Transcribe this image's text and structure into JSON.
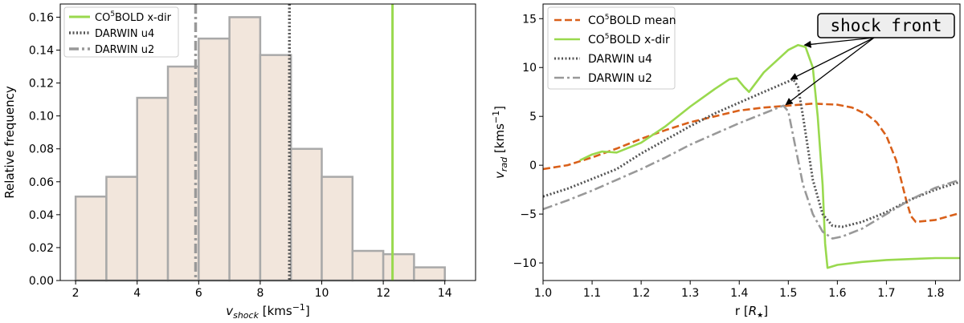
{
  "chart_data": [
    {
      "type": "bar",
      "title": "",
      "xlabel_main": "v",
      "xlabel_sub": "shock",
      "xlabel_unit": " [kms",
      "xlabel_exp": "−1",
      "xlabel_close": "]",
      "ylabel": "Relative frequency",
      "xlim": [
        1.5,
        15.0
      ],
      "ylim": [
        0,
        0.168
      ],
      "xticks": [
        2,
        4,
        6,
        8,
        10,
        12,
        14
      ],
      "yticks": [
        0.0,
        0.02,
        0.04,
        0.06,
        0.08,
        0.1,
        0.12,
        0.14,
        0.16
      ],
      "bin_edges": [
        2,
        3,
        4,
        5,
        6,
        7,
        8,
        9,
        10,
        11,
        12,
        13,
        14
      ],
      "values": [
        0.051,
        0.063,
        0.111,
        0.13,
        0.147,
        0.16,
        0.137,
        0.08,
        0.063,
        0.018,
        0.016,
        0.008
      ],
      "bar_color": "#f2e6dc",
      "edge_color": "#a9a9a9",
      "vlines": [
        {
          "name": "CO5BOLD x-dir",
          "x": 12.3,
          "color": "#99d94e",
          "style": "solid"
        },
        {
          "name": "DARWIN u4",
          "x": 8.95,
          "color": "#555555",
          "style": "dotted"
        },
        {
          "name": "DARWIN u2",
          "x": 5.9,
          "color": "#999999",
          "style": "dashdot"
        }
      ],
      "legend": {
        "placement": "top-left",
        "entries": [
          {
            "base": "CO",
            "sup": "5",
            "rest": "BOLD x-dir",
            "color": "#99d94e",
            "style": "solid"
          },
          {
            "base": "DARWIN u4",
            "sup": "",
            "rest": "",
            "color": "#555555",
            "style": "dotted"
          },
          {
            "base": "DARWIN u2",
            "sup": "",
            "rest": "",
            "color": "#999999",
            "style": "dashdot"
          }
        ]
      }
    },
    {
      "type": "line",
      "title": "",
      "xlabel_main": "r [",
      "xlabel_sym": "R",
      "xlabel_sub": "★",
      "xlabel_close": "]",
      "ylabel_main": "v",
      "ylabel_sub": "rad",
      "ylabel_unit": " [kms",
      "ylabel_exp": "−1",
      "ylabel_close": "]",
      "xlim": [
        1.0,
        1.85
      ],
      "ylim": [
        -11.8,
        16.5
      ],
      "xticks": [
        1.0,
        1.1,
        1.2,
        1.3,
        1.4,
        1.5,
        1.6,
        1.7,
        1.8
      ],
      "xtick_labels": [
        "1.0",
        "1.1",
        "1.2",
        "1.3",
        "1.4",
        "1.5",
        "1.6",
        "1.7",
        "1.8"
      ],
      "yticks": [
        -10,
        -5,
        0,
        5,
        10,
        15
      ],
      "ytick_labels": [
        "−10",
        "−5",
        "0",
        "5",
        "10",
        "15"
      ],
      "series": [
        {
          "name": "CO5BOLD mean",
          "color": "#d9601a",
          "style": "dashed",
          "x": [
            1.0,
            1.05,
            1.1,
            1.15,
            1.2,
            1.25,
            1.3,
            1.35,
            1.4,
            1.45,
            1.5,
            1.55,
            1.6,
            1.63,
            1.66,
            1.68,
            1.7,
            1.72,
            1.73,
            1.74,
            1.75,
            1.76,
            1.8,
            1.85
          ],
          "y": [
            -0.4,
            0.0,
            0.8,
            1.7,
            2.7,
            3.6,
            4.4,
            5.0,
            5.6,
            5.9,
            6.1,
            6.3,
            6.2,
            5.9,
            5.2,
            4.4,
            3.0,
            0.5,
            -1.5,
            -3.5,
            -5.2,
            -5.8,
            -5.6,
            -4.9
          ]
        },
        {
          "name": "CO5BOLD x-dir",
          "color": "#99d94e",
          "style": "solid",
          "x": [
            1.075,
            1.1,
            1.12,
            1.15,
            1.2,
            1.25,
            1.3,
            1.35,
            1.38,
            1.395,
            1.41,
            1.42,
            1.45,
            1.5,
            1.52,
            1.535,
            1.55,
            1.56,
            1.57,
            1.575,
            1.58,
            1.6,
            1.65,
            1.7,
            1.75,
            1.8,
            1.85
          ],
          "y": [
            0.5,
            1.1,
            1.4,
            1.3,
            2.3,
            4.0,
            6.0,
            7.8,
            8.8,
            8.9,
            8.0,
            7.5,
            9.5,
            11.8,
            12.3,
            12.1,
            10.0,
            5.0,
            -2.0,
            -8.0,
            -10.5,
            -10.2,
            -9.9,
            -9.7,
            -9.6,
            -9.5,
            -9.5
          ]
        },
        {
          "name": "DARWIN u4",
          "color": "#555555",
          "style": "dotted",
          "x": [
            1.0,
            1.05,
            1.1,
            1.15,
            1.2,
            1.25,
            1.3,
            1.35,
            1.4,
            1.45,
            1.51,
            1.52,
            1.53,
            1.55,
            1.57,
            1.59,
            1.61,
            1.65,
            1.7,
            1.75,
            1.8,
            1.85
          ],
          "y": [
            -3.2,
            -2.4,
            -1.4,
            -0.4,
            1.2,
            2.6,
            4.0,
            5.3,
            6.4,
            7.5,
            8.8,
            8.0,
            5.0,
            -1.5,
            -5.0,
            -6.2,
            -6.3,
            -5.8,
            -4.8,
            -3.5,
            -2.5,
            -1.7
          ]
        },
        {
          "name": "DARWIN u2",
          "color": "#999999",
          "style": "dashdot",
          "x": [
            1.0,
            1.05,
            1.1,
            1.15,
            1.2,
            1.25,
            1.3,
            1.35,
            1.4,
            1.45,
            1.49,
            1.5,
            1.51,
            1.53,
            1.55,
            1.57,
            1.59,
            1.61,
            1.65,
            1.7,
            1.75,
            1.8,
            1.85
          ],
          "y": [
            -4.5,
            -3.6,
            -2.6,
            -1.5,
            -0.4,
            0.8,
            2.1,
            3.2,
            4.3,
            5.3,
            6.1,
            5.5,
            3.0,
            -2.0,
            -5.0,
            -6.8,
            -7.5,
            -7.3,
            -6.5,
            -5.0,
            -3.5,
            -2.3,
            -1.5
          ]
        }
      ],
      "legend": {
        "placement": "top-left",
        "entries": [
          {
            "base": "CO",
            "sup": "5",
            "rest": "BOLD mean",
            "color": "#d9601a",
            "style": "dashed"
          },
          {
            "base": "CO",
            "sup": "5",
            "rest": "BOLD x-dir",
            "color": "#99d94e",
            "style": "solid"
          },
          {
            "base": "DARWIN u4",
            "sup": "",
            "rest": "",
            "color": "#555555",
            "style": "dotted"
          },
          {
            "base": "DARWIN u2",
            "sup": "",
            "rest": "",
            "color": "#999999",
            "style": "dashdot"
          }
        ]
      },
      "annotation": {
        "text": "shock front",
        "targets": [
          [
            1.533,
            12.3
          ],
          [
            1.505,
            8.8
          ],
          [
            1.495,
            6.2
          ]
        ]
      }
    }
  ]
}
